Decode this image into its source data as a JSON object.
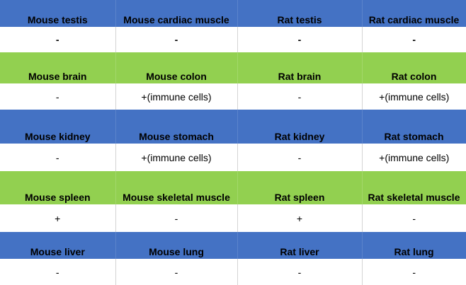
{
  "colors": {
    "blue_header": "#4472c4",
    "green_header": "#92d050",
    "value_background": "#ffffff",
    "grid_line": "#d4d4d4"
  },
  "rows": [
    {
      "header_color": "blue",
      "headers": [
        "Mouse testis",
        "Mouse cardiac muscle",
        "Rat testis",
        "Rat cardiac muscle"
      ],
      "values": [
        "-",
        "-",
        "-",
        "-"
      ]
    },
    {
      "header_color": "green",
      "headers": [
        "Mouse brain",
        "Mouse colon",
        "Rat brain",
        "Rat colon"
      ],
      "values": [
        "-",
        "+(immune cells)",
        "-",
        "+(immune cells)"
      ]
    },
    {
      "header_color": "blue",
      "headers": [
        "Mouse kidney",
        "Mouse stomach",
        "Rat kidney",
        "Rat stomach"
      ],
      "values": [
        "-",
        "+(immune cells)",
        "-",
        "+(immune cells)"
      ]
    },
    {
      "header_color": "green",
      "headers": [
        "Mouse spleen",
        "Mouse skeletal muscle",
        "Rat spleen",
        "Rat skeletal muscle"
      ],
      "values": [
        "+",
        "-",
        "+",
        "-"
      ]
    },
    {
      "header_color": "blue",
      "headers": [
        "Mouse liver",
        "Mouse lung",
        "Rat liver",
        "Rat lung"
      ],
      "values": [
        "-",
        "-",
        "-",
        "-"
      ]
    }
  ]
}
